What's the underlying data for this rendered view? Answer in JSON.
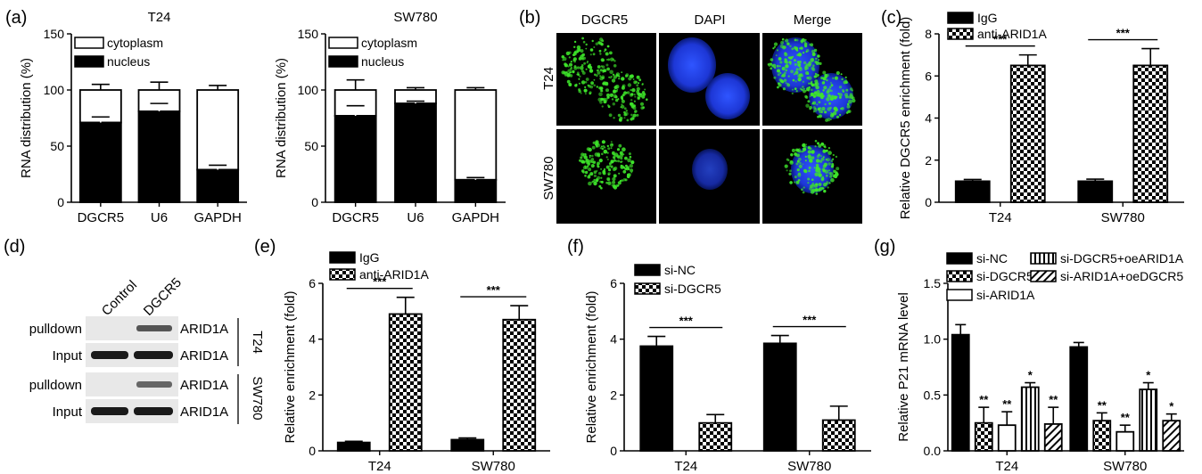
{
  "chart_data": [
    {
      "panel": "(a)",
      "type": "bar",
      "stacked": true,
      "title": "T24",
      "ylabel": "RNA distribution (%)",
      "ylim": [
        0,
        150
      ],
      "yticks": [
        "0",
        "50",
        "100",
        "150"
      ],
      "categories": [
        "DGCR5",
        "U6",
        "GAPDH"
      ],
      "series": [
        {
          "name": "nucleus",
          "values": [
            71,
            81,
            29
          ],
          "errors": [
            5,
            7,
            4
          ],
          "color": "#000000"
        },
        {
          "name": "cytoplasm",
          "values": [
            29,
            19,
            71
          ],
          "errors": [
            5,
            7,
            4
          ],
          "color": "#ffffff"
        }
      ],
      "legend": "top-left"
    },
    {
      "panel": "",
      "type": "bar",
      "stacked": true,
      "title": "SW780",
      "ylabel": "RNA distribution (%)",
      "ylim": [
        0,
        150
      ],
      "yticks": [
        "0",
        "50",
        "100",
        "150"
      ],
      "categories": [
        "DGCR5",
        "U6",
        "GAPDH"
      ],
      "series": [
        {
          "name": "nucleus",
          "values": [
            77,
            88,
            20
          ],
          "errors": [
            9,
            2,
            2
          ],
          "color": "#000000"
        },
        {
          "name": "cytoplasm",
          "values": [
            23,
            12,
            80
          ],
          "errors": [
            9,
            2,
            2
          ],
          "color": "#ffffff"
        }
      ],
      "legend": "top-left"
    },
    {
      "panel": "(c)",
      "type": "bar",
      "ylabel": "Relative DGCR5 enrichment (fold)",
      "ylim": [
        0,
        8
      ],
      "yticks": [
        "0",
        "2",
        "4",
        "6",
        "8"
      ],
      "categories": [
        "T24",
        "SW780"
      ],
      "series": [
        {
          "name": "IgG",
          "values": [
            1.0,
            1.0
          ],
          "errors": [
            0.08,
            0.1
          ],
          "pattern": "solid"
        },
        {
          "name": "anti-ARID1A",
          "values": [
            6.5,
            6.5
          ],
          "errors": [
            0.5,
            0.8
          ],
          "pattern": "checker"
        }
      ],
      "significance": [
        "***",
        "***"
      ],
      "legend": "top-left"
    },
    {
      "panel": "(e)",
      "type": "bar",
      "ylabel": "Relative enrichment (fold)",
      "ylim": [
        0,
        6
      ],
      "yticks": [
        "0",
        "2",
        "4",
        "6"
      ],
      "categories": [
        "T24",
        "SW780"
      ],
      "series": [
        {
          "name": "IgG",
          "values": [
            0.3,
            0.4
          ],
          "errors": [
            0.04,
            0.06
          ],
          "pattern": "solid"
        },
        {
          "name": "anti-ARID1A",
          "values": [
            4.9,
            4.7
          ],
          "errors": [
            0.6,
            0.5
          ],
          "pattern": "checker"
        }
      ],
      "significance": [
        "***",
        "***"
      ],
      "legend": "top-left"
    },
    {
      "panel": "(f)",
      "type": "bar",
      "ylabel": "Relative enrichment (fold)",
      "ylim": [
        0,
        6
      ],
      "yticks": [
        "0",
        "2",
        "4",
        "6"
      ],
      "categories": [
        "T24",
        "SW780"
      ],
      "series": [
        {
          "name": "si-NC",
          "values": [
            3.75,
            3.85
          ],
          "errors": [
            0.35,
            0.28
          ],
          "pattern": "solid"
        },
        {
          "name": "si-DGCR5",
          "values": [
            1.0,
            1.1
          ],
          "errors": [
            0.3,
            0.5
          ],
          "pattern": "checker"
        }
      ],
      "significance": [
        "***",
        "***"
      ],
      "legend": "top-left"
    },
    {
      "panel": "(g)",
      "type": "bar",
      "ylabel": "Relative P21 mRNA level",
      "ylim": [
        0,
        1.5
      ],
      "yticks": [
        "0.0",
        "0.5",
        "1.0",
        "1.5"
      ],
      "categories": [
        "T24",
        "SW780"
      ],
      "series": [
        {
          "name": "si-NC",
          "values": [
            1.04,
            0.93
          ],
          "errors": [
            0.09,
            0.04
          ],
          "pattern": "solid",
          "sig": [
            "",
            ""
          ]
        },
        {
          "name": "si-DGCR5",
          "values": [
            0.25,
            0.27
          ],
          "errors": [
            0.14,
            0.07
          ],
          "pattern": "checker",
          "sig": [
            "**",
            "**"
          ]
        },
        {
          "name": "si-ARID1A",
          "values": [
            0.23,
            0.17
          ],
          "errors": [
            0.12,
            0.06
          ],
          "pattern": "open",
          "sig": [
            "**",
            "**"
          ]
        },
        {
          "name": "si-DGCR5+oeARID1A",
          "values": [
            0.57,
            0.55
          ],
          "errors": [
            0.04,
            0.06
          ],
          "pattern": "vlines",
          "sig": [
            "*",
            "*"
          ]
        },
        {
          "name": "si-ARID1A+oeDGCR5",
          "values": [
            0.24,
            0.27
          ],
          "errors": [
            0.15,
            0.06
          ],
          "pattern": "diag",
          "sig": [
            "**",
            "*"
          ]
        }
      ],
      "legend": "top"
    }
  ],
  "microscopy": {
    "panel": "(b)",
    "columns": [
      "DGCR5",
      "DAPI",
      "Merge"
    ],
    "rows": [
      "T24",
      "SW780"
    ],
    "colors": {
      "dgcr5": "#3ee62a",
      "dapi": "#1c3cf0"
    }
  },
  "blot": {
    "panel": "(d)",
    "lanes": [
      "Control",
      "DGCR5"
    ],
    "rows": [
      {
        "label": "pulldown",
        "protein": "ARID1A"
      },
      {
        "label": "Input",
        "protein": "ARID1A"
      },
      {
        "label": "pulldown",
        "protein": "ARID1A"
      },
      {
        "label": "Input",
        "protein": "ARID1A"
      }
    ],
    "groups": [
      "T24",
      "SW780"
    ]
  }
}
